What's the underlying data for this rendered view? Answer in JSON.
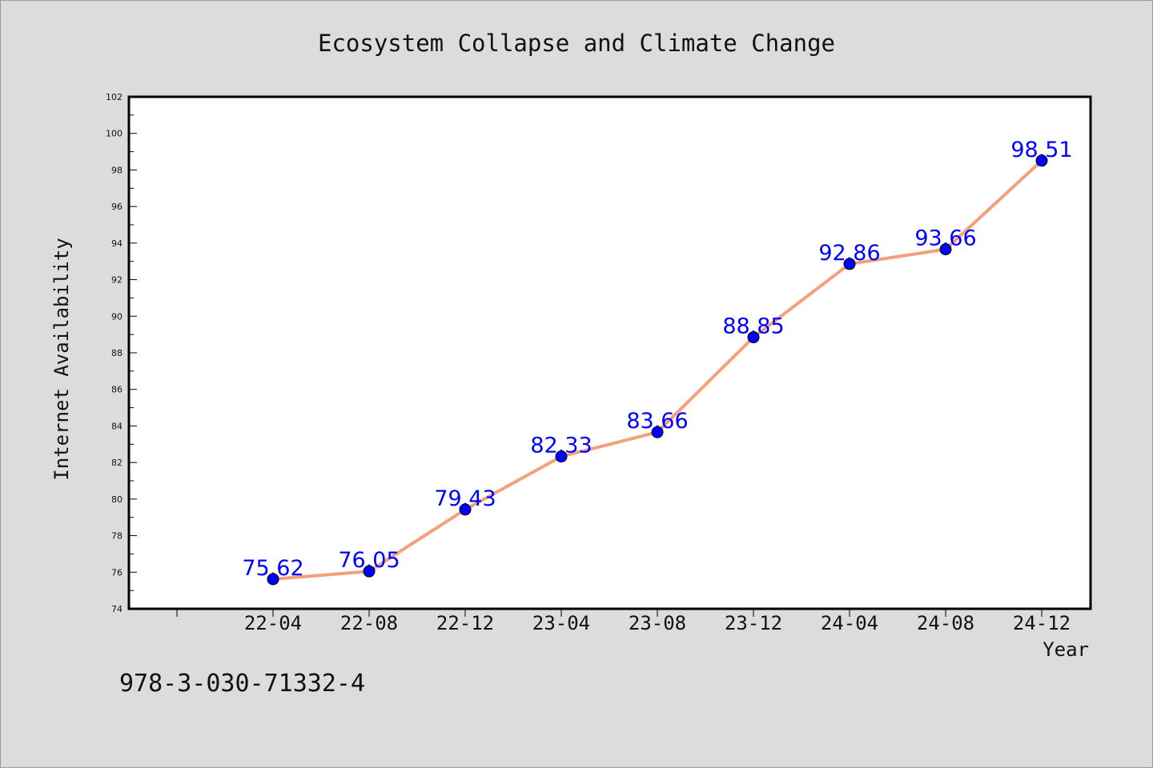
{
  "footnote": "978-3-030-71332-4",
  "colors": {
    "background": "#dcdcdc",
    "plot_area": "#ffffff",
    "line": "#f4a07c",
    "marker": "#0000ff",
    "data_label": "#0000ff"
  },
  "chart_data": {
    "type": "line",
    "title": "Ecosystem Collapse and Climate Change",
    "xlabel": "Year",
    "ylabel": "Internet Availability",
    "categories": [
      "22-04",
      "22-08",
      "22-12",
      "23-04",
      "23-08",
      "23-12",
      "24-04",
      "24-08",
      "24-12"
    ],
    "series": [
      {
        "values": [
          75.62,
          76.05,
          79.43,
          82.33,
          83.66,
          88.85,
          92.86,
          93.66,
          98.51
        ],
        "labels": [
          "75.62",
          "76.05",
          "79.43",
          "82.33",
          "83.66",
          "88.85",
          "92.86",
          "93.66",
          "98.51"
        ]
      }
    ],
    "ylim": [
      74,
      102
    ],
    "yticks": [
      74,
      76,
      78,
      80,
      82,
      84,
      86,
      88,
      90,
      92,
      94,
      96,
      98,
      100,
      102
    ],
    "ytick_labels": [
      "74",
      "76",
      "78",
      "80",
      "82",
      "84",
      "86",
      "88",
      "90",
      "92",
      "94",
      "96",
      "98",
      "100",
      "102"
    ],
    "grid": false,
    "legend": "none"
  }
}
